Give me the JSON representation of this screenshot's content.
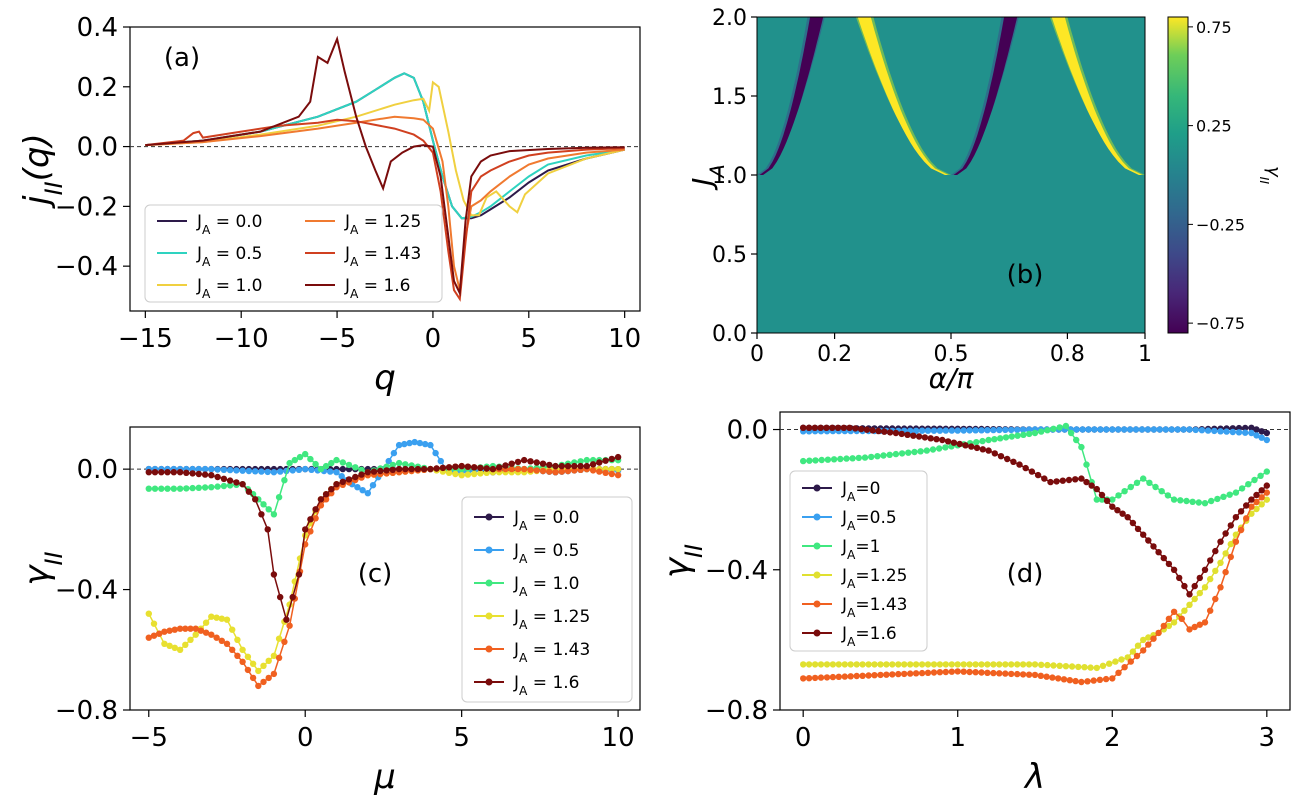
{
  "chart_data": [
    {
      "id": "a",
      "type": "line",
      "panel_label": "(a)",
      "xlabel": "q",
      "ylabel": "j_{II}(q)",
      "xlim": [
        -15.8,
        10.8
      ],
      "ylim": [
        -0.55,
        0.4
      ],
      "xticks": [
        -15,
        -10,
        -5,
        0,
        5,
        10
      ],
      "yticks": [
        0.4,
        0.2,
        0.0,
        -0.2,
        -0.4
      ],
      "ytick_labels": [
        "0.4",
        "0.2",
        "0.0",
        "−0.2",
        "−0.4"
      ],
      "xtick_labels": [
        "−15",
        "−10",
        "−5",
        "0",
        "5",
        "10"
      ],
      "reference_line": 0.0,
      "legend": {
        "placement": "lower-left",
        "columns": 2
      },
      "series": [
        {
          "name": "J_A = 0.0",
          "color": "#2d1a4a",
          "x": [
            -15,
            -12,
            -9,
            -6,
            -4,
            -3,
            -2,
            -1.5,
            -1,
            -0.5,
            0,
            0.5,
            1,
            1.5,
            2,
            2.5,
            3,
            4,
            5,
            6,
            8,
            10
          ],
          "y": [
            0.005,
            0.02,
            0.05,
            0.1,
            0.15,
            0.19,
            0.23,
            0.245,
            0.23,
            0.15,
            0.02,
            -0.1,
            -0.2,
            -0.24,
            -0.24,
            -0.23,
            -0.21,
            -0.17,
            -0.12,
            -0.08,
            -0.04,
            -0.01
          ]
        },
        {
          "name": "J_A = 0.5",
          "color": "#2ed3c0",
          "x": [
            -15,
            -12,
            -9,
            -6,
            -4,
            -3,
            -2,
            -1.5,
            -1,
            -0.5,
            0,
            0.5,
            1,
            1.5,
            2,
            2.5,
            3,
            4,
            5,
            6,
            8,
            10
          ],
          "y": [
            0.005,
            0.02,
            0.05,
            0.1,
            0.15,
            0.19,
            0.23,
            0.245,
            0.23,
            0.15,
            0.02,
            -0.1,
            -0.2,
            -0.24,
            -0.235,
            -0.22,
            -0.2,
            -0.15,
            -0.1,
            -0.06,
            -0.03,
            -0.01
          ]
        },
        {
          "name": "J_A = 1.0",
          "color": "#f0d040",
          "x": [
            -15,
            -12,
            -9,
            -6,
            -4,
            -2,
            -1,
            -0.5,
            -0.2,
            0,
            0.3,
            0.8,
            1.2,
            1.6,
            2.0,
            2.4,
            2.8,
            3.3,
            4.0,
            4.4,
            4.8,
            6,
            8,
            10
          ],
          "y": [
            0.005,
            0.015,
            0.04,
            0.07,
            0.1,
            0.14,
            0.155,
            0.16,
            0.12,
            0.215,
            0.2,
            0.05,
            -0.08,
            -0.18,
            -0.23,
            -0.23,
            -0.17,
            -0.15,
            -0.2,
            -0.22,
            -0.16,
            -0.09,
            -0.04,
            -0.01
          ]
        },
        {
          "name": "J_A = 1.25",
          "color": "#f07a30",
          "x": [
            -15,
            -12,
            -9,
            -6,
            -4,
            -2,
            -1,
            -0.5,
            0,
            0.5,
            0.8,
            1.1,
            1.4,
            1.7,
            2.0,
            2.5,
            3,
            4,
            5,
            6,
            8,
            10
          ],
          "y": [
            0.005,
            0.015,
            0.035,
            0.06,
            0.08,
            0.1,
            0.095,
            0.09,
            0.06,
            -0.05,
            -0.2,
            -0.4,
            -0.48,
            -0.3,
            -0.2,
            -0.18,
            -0.15,
            -0.1,
            -0.06,
            -0.04,
            -0.02,
            -0.01
          ]
        },
        {
          "name": "J_A = 1.43",
          "color": "#d04020",
          "x": [
            -15,
            -13,
            -12.5,
            -12.2,
            -12,
            -10,
            -8,
            -6,
            -5,
            -4,
            -2,
            -1,
            -0.5,
            0,
            0.4,
            0.8,
            1.1,
            1.4,
            1.7,
            2.0,
            2.5,
            3,
            4,
            5,
            6,
            8,
            10
          ],
          "y": [
            0.005,
            0.02,
            0.045,
            0.05,
            0.03,
            0.05,
            0.07,
            0.08,
            0.09,
            0.085,
            0.06,
            0.04,
            0.02,
            -0.02,
            -0.15,
            -0.35,
            -0.48,
            -0.51,
            -0.32,
            -0.15,
            -0.1,
            -0.08,
            -0.05,
            -0.03,
            -0.02,
            -0.01,
            -0.005
          ]
        },
        {
          "name": "J_A = 1.6",
          "color": "#7a0c0c",
          "x": [
            -15,
            -12,
            -9,
            -7,
            -6.4,
            -6,
            -5.5,
            -5,
            -4.6,
            -4,
            -3.5,
            -3,
            -2.6,
            -2.2,
            -1.6,
            -1,
            -0.5,
            0,
            0.4,
            0.8,
            1.1,
            1.4,
            1.7,
            2,
            2.5,
            3,
            4,
            6,
            8,
            10
          ],
          "y": [
            0.005,
            0.02,
            0.05,
            0.1,
            0.15,
            0.3,
            0.28,
            0.36,
            0.25,
            0.1,
            0.0,
            -0.08,
            -0.14,
            -0.05,
            -0.02,
            0.0,
            0.005,
            0.0,
            -0.1,
            -0.3,
            -0.45,
            -0.49,
            -0.25,
            -0.1,
            -0.05,
            -0.03,
            -0.015,
            -0.008,
            -0.004,
            -0.002
          ]
        }
      ]
    },
    {
      "id": "b",
      "type": "heatmap",
      "panel_label": "(b)",
      "xlabel": "α/π",
      "ylabel": "J_A",
      "xlim": [
        0,
        1
      ],
      "ylim": [
        0,
        2
      ],
      "xticks": [
        0,
        0.2,
        0.5,
        0.8,
        1
      ],
      "xtick_labels": [
        "0",
        "0.2",
        "0.5",
        "0.8",
        "1"
      ],
      "yticks": [
        0.0,
        0.5,
        1.0,
        1.5,
        2.0
      ],
      "ytick_labels": [
        "0.0",
        "0.5",
        "1.0",
        "1.5",
        "2.0"
      ],
      "colorbar": {
        "label": "γ_{II}",
        "range": [
          -0.8,
          0.8
        ],
        "ticks": [
          0.75,
          0.25,
          -0.25,
          -0.75
        ],
        "tick_labels": [
          "0.75",
          "0.25",
          "−0.25",
          "−0.75"
        ],
        "colormap": "viridis"
      },
      "features": [
        {
          "kind": "negative-band",
          "alpha_start": 0.0,
          "alpha_end_at_top": 0.13,
          "value": -0.75
        },
        {
          "kind": "positive-band",
          "alpha_start": 0.5,
          "alpha_end_at_top": 0.3,
          "value": 0.75
        },
        {
          "kind": "negative-band",
          "alpha_start": 0.5,
          "alpha_end_at_top": 0.63,
          "value": -0.75
        },
        {
          "kind": "positive-band",
          "alpha_start": 1.0,
          "alpha_end_at_top": 0.8,
          "value": 0.75
        }
      ],
      "onset_J_A": 1.0,
      "background_value": 0.0
    },
    {
      "id": "c",
      "type": "line",
      "panel_label": "(c)",
      "xlabel": "μ",
      "ylabel": "γ_{II}",
      "xlim": [
        -5.6,
        10.7
      ],
      "ylim": [
        -0.8,
        0.14
      ],
      "xticks": [
        -5,
        0,
        5,
        10
      ],
      "xtick_labels": [
        "−5",
        "0",
        "5",
        "10"
      ],
      "yticks": [
        0.0,
        -0.4,
        -0.8
      ],
      "ytick_labels": [
        "0.0",
        "−0.4",
        "−0.8"
      ],
      "reference_line": 0.0,
      "legend": {
        "placement": "right"
      },
      "series": [
        {
          "name": "J_A = 0.0",
          "color": "#2d1a4a",
          "x": [
            -5,
            -4,
            -3,
            -2,
            -1,
            0,
            1,
            2,
            3,
            4,
            5,
            6,
            7,
            8,
            9,
            10
          ],
          "y": [
            0.0,
            0.0,
            0.0,
            0.0,
            0.0,
            0.0,
            0.0,
            0.0,
            0.0,
            0.0,
            0.0,
            -0.01,
            0.0,
            -0.01,
            0.0,
            0.0
          ]
        },
        {
          "name": "J_A = 0.5",
          "color": "#3aa0f0",
          "x": [
            -5,
            -4,
            -3,
            -2,
            -1,
            0,
            1,
            1.5,
            2,
            2.5,
            3,
            3.5,
            4,
            4.5,
            5,
            6,
            7,
            8,
            9,
            10
          ],
          "y": [
            0.0,
            0.0,
            0.0,
            -0.005,
            -0.01,
            0.0,
            -0.01,
            -0.05,
            -0.08,
            0.0,
            0.08,
            0.09,
            0.08,
            0.0,
            -0.01,
            0.0,
            0.0,
            -0.01,
            0.0,
            -0.005
          ]
        },
        {
          "name": "J_A = 1.0",
          "color": "#40e880",
          "x": [
            -5,
            -4,
            -3,
            -2,
            -1.5,
            -1,
            -0.5,
            0,
            0.5,
            1,
            2,
            3,
            4,
            5,
            6,
            7,
            8,
            9,
            10
          ],
          "y": [
            -0.065,
            -0.065,
            -0.06,
            -0.05,
            -0.1,
            -0.15,
            0.02,
            0.05,
            0.0,
            0.03,
            -0.01,
            0.02,
            0.0,
            0.0,
            0.01,
            0.0,
            0.01,
            0.03,
            0.03
          ]
        },
        {
          "name": "J_A = 1.25",
          "color": "#e8e030",
          "x": [
            -5,
            -4.5,
            -4,
            -3.5,
            -3,
            -2.5,
            -2,
            -1.5,
            -1,
            -0.5,
            0,
            0.5,
            1,
            2,
            3,
            4,
            5,
            6,
            7,
            8,
            9,
            10
          ],
          "y": [
            -0.48,
            -0.58,
            -0.6,
            -0.55,
            -0.49,
            -0.5,
            -0.6,
            -0.67,
            -0.62,
            -0.45,
            -0.22,
            -0.1,
            -0.05,
            -0.02,
            -0.01,
            0.0,
            -0.02,
            -0.01,
            -0.01,
            0.0,
            0.0,
            0.0
          ]
        },
        {
          "name": "J_A = 1.43",
          "color": "#f06020",
          "x": [
            -5,
            -4.5,
            -4,
            -3.5,
            -3,
            -2.5,
            -2,
            -1.5,
            -1,
            -0.5,
            0,
            0.5,
            1,
            2,
            3,
            4,
            5,
            6,
            7,
            8,
            9,
            10
          ],
          "y": [
            -0.56,
            -0.54,
            -0.53,
            -0.53,
            -0.55,
            -0.58,
            -0.64,
            -0.72,
            -0.68,
            -0.52,
            -0.25,
            -0.12,
            -0.06,
            -0.02,
            -0.01,
            0.0,
            0.01,
            0.0,
            0.0,
            -0.01,
            0.0,
            -0.02
          ]
        },
        {
          "name": "J_A = 1.6",
          "color": "#7a0c0c",
          "x": [
            -5,
            -4,
            -3,
            -2,
            -1.6,
            -1.2,
            -1,
            -0.6,
            -0.2,
            0,
            0.5,
            1,
            2,
            3,
            4,
            5,
            6,
            7,
            8,
            9,
            10
          ],
          "y": [
            -0.01,
            -0.01,
            -0.02,
            -0.05,
            -0.1,
            -0.2,
            -0.35,
            -0.5,
            -0.35,
            -0.2,
            -0.1,
            -0.05,
            -0.01,
            0.0,
            0.0,
            0.01,
            0.0,
            0.03,
            0.01,
            0.01,
            0.04
          ]
        }
      ]
    },
    {
      "id": "d",
      "type": "line",
      "panel_label": "(d)",
      "xlabel": "λ",
      "ylabel": "γ_{II}",
      "xlim": [
        -0.15,
        3.15
      ],
      "ylim": [
        -0.8,
        0.05
      ],
      "xticks": [
        0,
        1,
        2,
        3
      ],
      "xtick_labels": [
        "0",
        "1",
        "2",
        "3"
      ],
      "yticks": [
        0.0,
        -0.4,
        -0.8
      ],
      "ytick_labels": [
        "0.0",
        "−0.4",
        "−0.8"
      ],
      "reference_line": 0.0,
      "legend": {
        "placement": "left"
      },
      "series": [
        {
          "name": "J_A=0",
          "color": "#2d1a4a",
          "x": [
            0,
            0.5,
            1,
            1.5,
            2,
            2.5,
            2.9,
            3
          ],
          "y": [
            0.005,
            0.003,
            0.002,
            0.0,
            0.0,
            0.0,
            0.005,
            -0.01
          ]
        },
        {
          "name": "J_A=0.5",
          "color": "#3aa0f0",
          "x": [
            0,
            0.5,
            1,
            1.5,
            2,
            2.5,
            2.9,
            3
          ],
          "y": [
            -0.005,
            -0.004,
            -0.003,
            0.0,
            0.0,
            0.0,
            -0.01,
            -0.03
          ]
        },
        {
          "name": "J_A=1",
          "color": "#40e880",
          "x": [
            0,
            0.4,
            0.8,
            1.2,
            1.5,
            1.7,
            1.8,
            1.9,
            2.0,
            2.2,
            2.4,
            2.6,
            2.8,
            3.0
          ],
          "y": [
            -0.09,
            -0.08,
            -0.06,
            -0.03,
            -0.01,
            0.01,
            -0.05,
            -0.2,
            -0.2,
            -0.14,
            -0.2,
            -0.21,
            -0.18,
            -0.12
          ]
        },
        {
          "name": "J_A=1.25",
          "color": "#e0e030",
          "x": [
            0,
            0.5,
            1,
            1.5,
            1.9,
            2.1,
            2.2,
            2.3,
            2.4,
            2.5,
            2.6,
            2.7,
            2.8,
            2.9,
            3.0
          ],
          "y": [
            -0.67,
            -0.67,
            -0.67,
            -0.67,
            -0.68,
            -0.65,
            -0.6,
            -0.58,
            -0.55,
            -0.5,
            -0.45,
            -0.38,
            -0.3,
            -0.24,
            -0.2
          ]
        },
        {
          "name": "J_A=1.43",
          "color": "#f06020",
          "x": [
            0,
            0.5,
            1,
            1.5,
            1.8,
            2.0,
            2.2,
            2.3,
            2.4,
            2.45,
            2.5,
            2.6,
            2.7,
            2.8,
            2.9,
            3.0
          ],
          "y": [
            -0.71,
            -0.7,
            -0.69,
            -0.7,
            -0.72,
            -0.71,
            -0.63,
            -0.58,
            -0.52,
            -0.54,
            -0.57,
            -0.55,
            -0.45,
            -0.32,
            -0.22,
            -0.18
          ]
        },
        {
          "name": "J_A=1.6",
          "color": "#7a0c0c",
          "x": [
            0,
            0.3,
            0.6,
            0.9,
            1.2,
            1.4,
            1.6,
            1.8,
            1.9,
            2.0,
            2.1,
            2.2,
            2.3,
            2.4,
            2.5,
            2.6,
            2.7,
            2.8,
            2.9,
            3.0
          ],
          "y": [
            0.005,
            0.005,
            -0.01,
            -0.03,
            -0.06,
            -0.1,
            -0.15,
            -0.14,
            -0.17,
            -0.22,
            -0.25,
            -0.3,
            -0.35,
            -0.4,
            -0.47,
            -0.4,
            -0.32,
            -0.25,
            -0.2,
            -0.16
          ]
        }
      ]
    }
  ]
}
